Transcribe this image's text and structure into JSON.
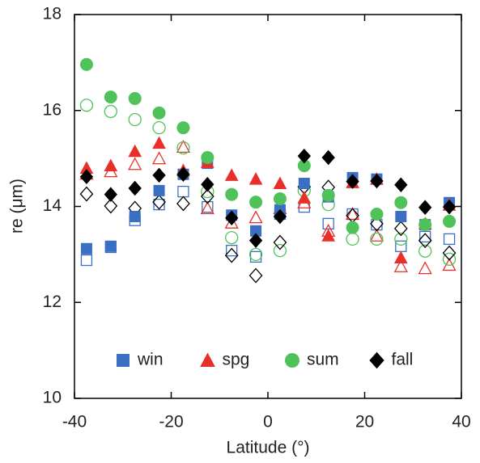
{
  "chart_data": {
    "type": "scatter",
    "xlabel": "Latitude (°)",
    "ylabel": "re (μm)",
    "xlim": [
      -40,
      40
    ],
    "xticks": [
      -40,
      -20,
      0,
      20,
      40
    ],
    "ylim": [
      10,
      18
    ],
    "yticks": [
      10,
      12,
      14,
      16,
      18
    ],
    "legend": "bottom",
    "x": [
      -37.5,
      -32.5,
      -27.5,
      -22.5,
      -17.5,
      -12.5,
      -7.5,
      -2.5,
      2.5,
      7.5,
      12.5,
      17.5,
      22.5,
      27.5,
      32.5,
      37.5
    ],
    "series": [
      {
        "name": "win",
        "color": "#3a6fc4",
        "marker": "square",
        "filled": true,
        "values": [
          13.12,
          13.17,
          13.79,
          14.33,
          14.67,
          14.9,
          13.82,
          13.49,
          13.93,
          14.48,
          14.2,
          14.6,
          14.57,
          13.79,
          13.62,
          14.08
        ]
      },
      {
        "color": "#3a6fc4",
        "marker": "square",
        "filled": false,
        "values": [
          12.88,
          13.15,
          13.71,
          14.04,
          14.31,
          13.99,
          13.08,
          12.95,
          13.84,
          13.99,
          13.64,
          13.84,
          13.62,
          13.17,
          13.37,
          13.32
        ]
      },
      {
        "name": "spg",
        "color": "#e8302a",
        "marker": "triangle",
        "filled": true,
        "values": [
          14.8,
          14.85,
          15.15,
          15.32,
          14.75,
          14.92,
          14.65,
          14.57,
          14.48,
          14.18,
          13.39,
          14.5,
          14.57,
          12.93,
          13.64,
          14.03
        ]
      },
      {
        "color": "#e8302a",
        "marker": "triangle",
        "filled": false,
        "values": [
          14.68,
          14.73,
          14.88,
          15.0,
          15.24,
          13.96,
          13.66,
          13.77,
          13.96,
          14.08,
          13.49,
          13.84,
          13.39,
          12.75,
          12.71,
          12.78
        ]
      },
      {
        "name": "sum",
        "color": "#4fc25a",
        "marker": "circle",
        "filled": true,
        "values": [
          16.96,
          16.28,
          16.25,
          15.95,
          15.64,
          15.02,
          14.25,
          14.09,
          14.16,
          14.85,
          14.23,
          13.56,
          13.84,
          14.08,
          13.62,
          13.69
        ]
      },
      {
        "color": "#4fc25a",
        "marker": "circle",
        "filled": false,
        "values": [
          16.11,
          15.98,
          15.81,
          15.64,
          15.22,
          14.31,
          13.35,
          13.0,
          13.08,
          14.33,
          14.04,
          13.32,
          13.32,
          13.32,
          13.07,
          12.9
        ]
      },
      {
        "name": "fall",
        "color": "#000000",
        "marker": "diamond",
        "filled": true,
        "values": [
          14.62,
          14.25,
          14.38,
          14.65,
          14.67,
          14.46,
          13.76,
          13.29,
          13.79,
          15.05,
          15.02,
          14.52,
          14.53,
          14.45,
          13.98,
          13.99
        ]
      },
      {
        "color": "#000000",
        "marker": "diamond",
        "filled": false,
        "values": [
          14.26,
          14.01,
          13.96,
          14.09,
          14.06,
          14.21,
          12.98,
          12.56,
          13.25,
          14.41,
          14.4,
          13.81,
          13.64,
          13.54,
          13.29,
          13.03
        ]
      }
    ]
  }
}
